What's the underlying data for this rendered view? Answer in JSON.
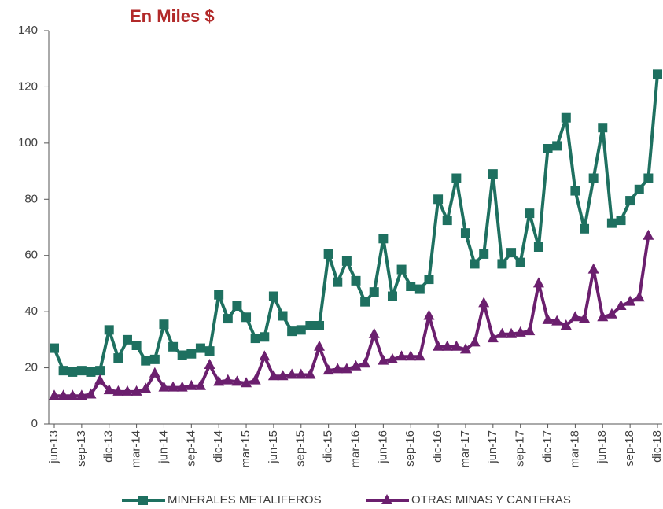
{
  "chart_data": {
    "type": "line",
    "title": "En Miles  $",
    "categories": [
      "jun-13",
      null,
      null,
      "sep-13",
      null,
      null,
      "dic-13",
      null,
      null,
      "mar-14",
      null,
      null,
      "jun-14",
      null,
      null,
      "sep-14",
      null,
      null,
      "dic-14",
      null,
      null,
      "mar-15",
      null,
      null,
      "jun-15",
      null,
      null,
      "sep-15",
      null,
      null,
      "dic-15",
      null,
      null,
      "mar-16",
      null,
      null,
      "jun-16",
      null,
      null,
      "sep-16",
      null,
      null,
      "dic-16",
      null,
      null,
      "mar-17",
      null,
      null,
      "jun-17",
      null,
      null,
      "sep-17",
      null,
      null,
      "dic-17",
      null,
      null,
      "mar-18",
      null,
      null,
      "jun-18",
      null,
      null,
      "sep-18",
      null,
      null,
      "dic-18"
    ],
    "series": [
      {
        "name": "MINERALES METALIFEROS",
        "color": "#1e7060",
        "marker": "square",
        "values": [
          27,
          19,
          18.5,
          19,
          18.5,
          19,
          33.5,
          23.5,
          30,
          28,
          22.5,
          23,
          35.5,
          27.5,
          24.5,
          25,
          27,
          26,
          46,
          37.5,
          42,
          38,
          30.5,
          31,
          45.5,
          38.5,
          33,
          33.5,
          35,
          35,
          60.5,
          50.5,
          58,
          51,
          43.5,
          47,
          66,
          45.5,
          55,
          49,
          48,
          51.5,
          80,
          72.5,
          87.5,
          68,
          57,
          60.5,
          89,
          57,
          61,
          57.5,
          75,
          63,
          98,
          99,
          109,
          83,
          69.5,
          87.5,
          105.5,
          71.5,
          72.5,
          79.5,
          83.5,
          87.5,
          124.5
        ]
      },
      {
        "name": "OTRAS MINAS Y CANTERAS",
        "color": "#6b1f6e",
        "marker": "triangle",
        "values": [
          10,
          10,
          10,
          10,
          10.5,
          15.5,
          12,
          11.5,
          11.5,
          11.5,
          12.5,
          18,
          13,
          13,
          13,
          13.5,
          13.5,
          21,
          15,
          15.5,
          15,
          14.5,
          15.5,
          24,
          17,
          17,
          17.5,
          17.5,
          17.5,
          27.5,
          19,
          19.5,
          19.5,
          20.5,
          21.5,
          32,
          22.5,
          23,
          24,
          24,
          24,
          38.5,
          27.5,
          27.5,
          27.5,
          26.5,
          29,
          43,
          30.5,
          32,
          32,
          32.5,
          33,
          50,
          37,
          36.5,
          35,
          38,
          37.5,
          55,
          38,
          39,
          42,
          43.5,
          45,
          67,
          null
        ]
      }
    ],
    "ylim": [
      0,
      140
    ],
    "yticks": [
      0,
      20,
      40,
      60,
      80,
      100,
      120,
      140
    ],
    "title_color": "#b22a2a"
  }
}
